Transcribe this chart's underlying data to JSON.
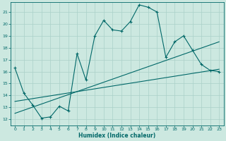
{
  "xlabel": "Humidex (Indice chaleur)",
  "ylabel": "",
  "xlim": [
    -0.5,
    23.5
  ],
  "ylim": [
    11.5,
    21.8
  ],
  "xticks": [
    0,
    1,
    2,
    3,
    4,
    5,
    6,
    7,
    8,
    9,
    10,
    11,
    12,
    13,
    14,
    15,
    16,
    17,
    18,
    19,
    20,
    21,
    22,
    23
  ],
  "yticks": [
    12,
    13,
    14,
    15,
    16,
    17,
    18,
    19,
    20,
    21
  ],
  "background_color": "#cce8e0",
  "line_color": "#006868",
  "main_line_x": [
    0,
    1,
    2,
    3,
    4,
    5,
    6,
    7,
    8,
    9,
    10,
    11,
    12,
    13,
    14,
    15,
    16,
    17,
    18,
    19,
    20,
    21,
    22,
    23
  ],
  "main_line_y": [
    16.3,
    14.2,
    13.2,
    12.1,
    12.2,
    13.1,
    12.7,
    17.5,
    15.3,
    19.0,
    20.3,
    19.5,
    19.4,
    20.2,
    21.6,
    21.4,
    21.0,
    17.2,
    18.5,
    19.0,
    17.8,
    16.6,
    16.1,
    16.0
  ],
  "trend_line1_x": [
    0,
    23
  ],
  "trend_line1_y": [
    12.5,
    18.5
  ],
  "trend_line2_x": [
    0,
    23
  ],
  "trend_line2_y": [
    13.5,
    16.2
  ],
  "grid_color": "#aad0c8",
  "figsize": [
    3.2,
    2.0
  ],
  "dpi": 100
}
